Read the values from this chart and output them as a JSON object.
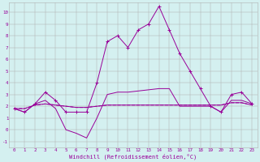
{
  "x": [
    0,
    1,
    2,
    3,
    4,
    5,
    6,
    7,
    8,
    9,
    10,
    11,
    12,
    13,
    14,
    15,
    16,
    17,
    18,
    19,
    20,
    21,
    22,
    23
  ],
  "line_temp": [
    1.8,
    1.5,
    2.2,
    3.2,
    2.5,
    1.5,
    1.5,
    1.5,
    4.0,
    7.5,
    8.0,
    7.0,
    8.5,
    9.0,
    10.5,
    8.5,
    6.5,
    5.0,
    3.5,
    2.0,
    1.5,
    3.0,
    3.2,
    2.2
  ],
  "line_windchill": [
    1.8,
    1.5,
    2.2,
    2.5,
    1.8,
    0.0,
    -0.3,
    -0.7,
    1.0,
    3.0,
    3.2,
    3.2,
    3.3,
    3.4,
    3.5,
    3.5,
    2.0,
    2.0,
    2.0,
    2.0,
    1.5,
    2.5,
    2.5,
    2.2
  ],
  "line_flat1": [
    1.8,
    1.8,
    2.1,
    2.2,
    2.1,
    2.0,
    1.9,
    1.9,
    2.0,
    2.1,
    2.1,
    2.1,
    2.1,
    2.1,
    2.1,
    2.1,
    2.1,
    2.1,
    2.1,
    2.1,
    2.1,
    2.3,
    2.3,
    2.1
  ],
  "line_flat2": [
    1.8,
    1.8,
    2.1,
    2.2,
    2.1,
    2.0,
    1.9,
    1.9,
    2.0,
    2.1,
    2.1,
    2.1,
    2.1,
    2.1,
    2.1,
    2.1,
    2.1,
    2.1,
    2.1,
    2.1,
    2.1,
    2.3,
    2.3,
    2.1
  ],
  "line_color": "#990099",
  "bg_color": "#d4f0f0",
  "grid_color": "#b0b0b0",
  "xlabel": "Windchill (Refroidissement éolien,°C)",
  "ylim": [
    -1.5,
    10.8
  ],
  "xlim": [
    -0.5,
    23.5
  ]
}
